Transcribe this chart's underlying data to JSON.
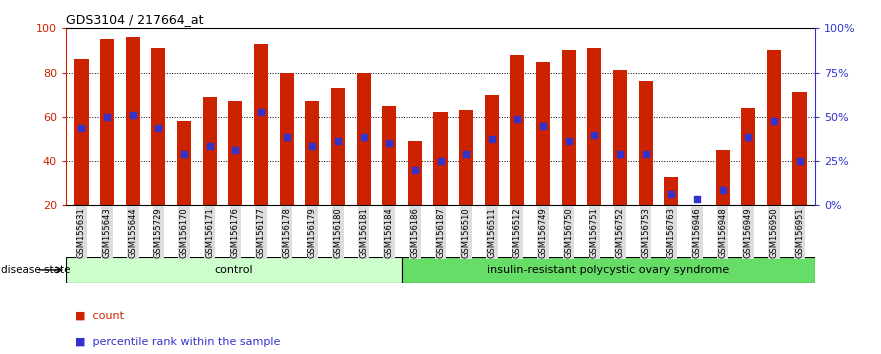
{
  "title": "GDS3104 / 217664_at",
  "samples": [
    "GSM155631",
    "GSM155643",
    "GSM155644",
    "GSM155729",
    "GSM156170",
    "GSM156171",
    "GSM156176",
    "GSM156177",
    "GSM156178",
    "GSM156179",
    "GSM156180",
    "GSM156181",
    "GSM156184",
    "GSM156186",
    "GSM156187",
    "GSM156510",
    "GSM156511",
    "GSM156512",
    "GSM156749",
    "GSM156750",
    "GSM156751",
    "GSM156752",
    "GSM156753",
    "GSM156763",
    "GSM156946",
    "GSM156948",
    "GSM156949",
    "GSM156950",
    "GSM156951"
  ],
  "bar_heights": [
    86,
    95,
    96,
    91,
    58,
    69,
    67,
    93,
    80,
    67,
    73,
    80,
    65,
    49,
    62,
    63,
    70,
    88,
    85,
    90,
    91,
    81,
    76,
    33,
    20,
    45,
    64,
    90,
    71
  ],
  "dot_positions": [
    55,
    60,
    61,
    55,
    43,
    47,
    45,
    62,
    51,
    47,
    49,
    51,
    48,
    36,
    40,
    43,
    50,
    59,
    56,
    49,
    52,
    43,
    43,
    25,
    23,
    27,
    51,
    58,
    40
  ],
  "bar_color": "#CC2200",
  "dot_color": "#3333CC",
  "control_count": 13,
  "group1_label": "control",
  "group2_label": "insulin-resistant polycystic ovary syndrome",
  "group1_color": "#CCFFCC",
  "group2_color": "#66DD66",
  "ylim": [
    20,
    100
  ],
  "yticks_left": [
    20,
    40,
    60,
    80,
    100
  ],
  "right_tick_pcts": [
    0,
    25,
    50,
    75,
    100
  ],
  "right_tick_labels": [
    "0%",
    "25%",
    "50%",
    "75%",
    "100%"
  ],
  "legend_count_label": "count",
  "legend_pct_label": "percentile rank within the sample"
}
